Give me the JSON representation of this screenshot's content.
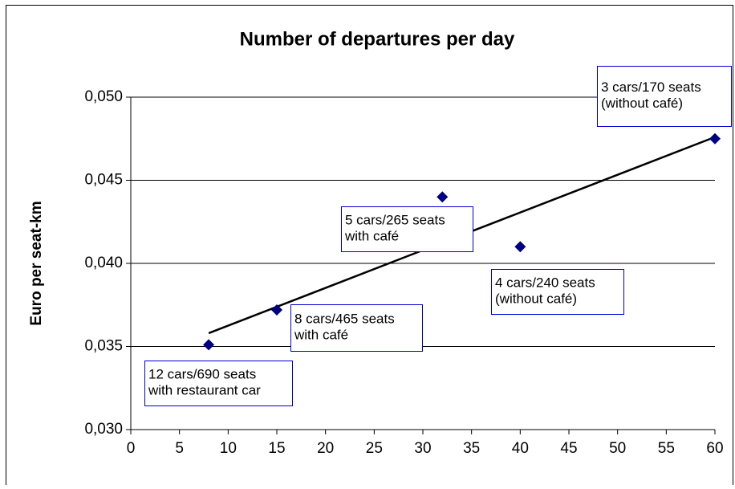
{
  "chart_data": {
    "type": "scatter",
    "title": "Number of departures per day",
    "y_label": "Euro per seat-km",
    "x": [
      8,
      15,
      32,
      40,
      60
    ],
    "values": [
      0.0351,
      0.0372,
      0.044,
      0.041,
      0.0475
    ],
    "color": "#000080",
    "trendline": {
      "x": [
        8,
        60
      ],
      "values": [
        0.0358,
        0.0476
      ],
      "color": "#000000"
    },
    "xlim": [
      0,
      60
    ],
    "xticks": [
      0,
      5,
      10,
      15,
      20,
      25,
      30,
      35,
      40,
      45,
      50,
      55,
      60
    ],
    "ylim": [
      0.03,
      0.05
    ],
    "yticks": [
      {
        "value": 0.03,
        "label": "0,030"
      },
      {
        "value": 0.035,
        "label": "0,035"
      },
      {
        "value": 0.04,
        "label": "0,040"
      },
      {
        "value": 0.045,
        "label": "0,045"
      },
      {
        "value": 0.05,
        "label": "0,050"
      }
    ],
    "grid": true,
    "annotations": [
      [
        "12 cars/690 seats",
        "with restaurant car"
      ],
      [
        "8 cars/465 seats",
        "with café"
      ],
      [
        "5 cars/265 seats",
        "with café"
      ],
      [
        "4 cars/240 seats",
        "(without café)"
      ],
      [
        "3 cars/170 seats",
        "(without café)"
      ]
    ]
  }
}
